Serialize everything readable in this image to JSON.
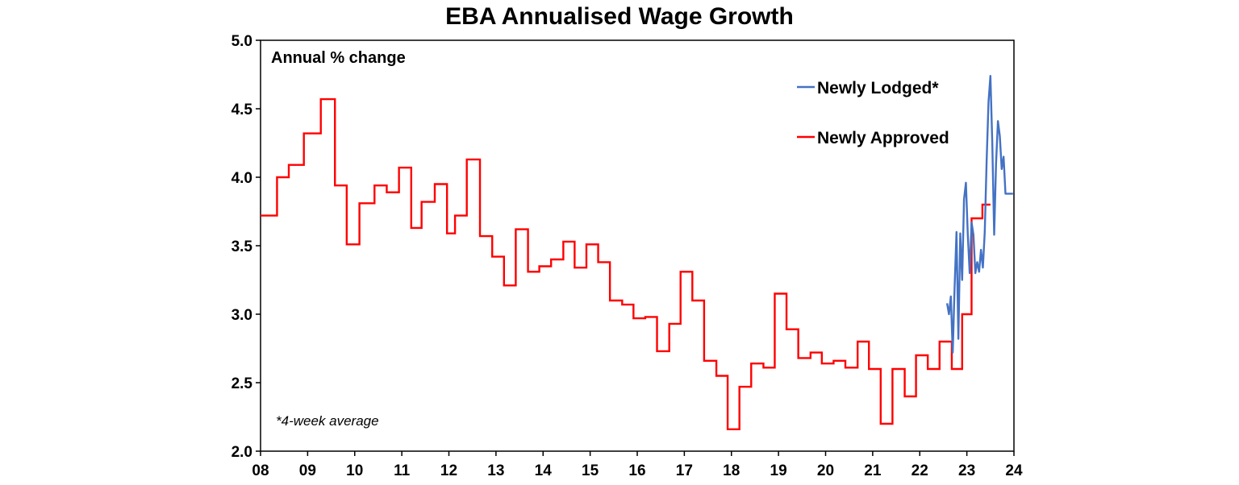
{
  "chart_data": {
    "type": "line",
    "title": "EBA Annualised Wage Growth",
    "ylabel": "Annual % change",
    "note": "*4-week average",
    "ylim": [
      2.0,
      5.0
    ],
    "yticks": [
      "2.0",
      "2.5",
      "3.0",
      "3.5",
      "4.0",
      "4.5",
      "5.0"
    ],
    "xlim": [
      2008.0,
      2024.0
    ],
    "xticks": [
      "08",
      "09",
      "10",
      "11",
      "12",
      "13",
      "14",
      "15",
      "16",
      "17",
      "18",
      "19",
      "20",
      "21",
      "22",
      "23",
      "24"
    ],
    "legend_position": "top-right",
    "series": [
      {
        "name": "Newly Lodged*",
        "color": "#4472c4",
        "x": [
          2022.58,
          2022.62,
          2022.66,
          2022.7,
          2022.74,
          2022.78,
          2022.82,
          2022.86,
          2022.9,
          2022.94,
          2022.98,
          2023.02,
          2023.06,
          2023.1,
          2023.14,
          2023.18,
          2023.22,
          2023.26,
          2023.3,
          2023.34,
          2023.38,
          2023.42,
          2023.46,
          2023.5,
          2023.54,
          2023.58,
          2023.62,
          2023.66,
          2023.7,
          2023.74,
          2023.78,
          2023.82,
          2023.86,
          2023.9,
          2023.94,
          2023.98
        ],
        "values": [
          3.08,
          3.0,
          3.13,
          2.72,
          3.2,
          3.6,
          2.82,
          3.59,
          3.25,
          3.84,
          3.96,
          3.58,
          3.3,
          3.67,
          3.58,
          3.3,
          3.38,
          3.31,
          3.47,
          3.34,
          3.6,
          4.12,
          4.55,
          4.74,
          4.25,
          3.58,
          4.1,
          4.41,
          4.3,
          4.06,
          4.15,
          3.88,
          3.88,
          3.88,
          3.88,
          3.88
        ]
      },
      {
        "name": "Newly Approved",
        "color": "#ff0000",
        "x": [
          2008.0,
          2008.35,
          2008.6,
          2008.92,
          2009.28,
          2009.58,
          2009.83,
          2010.1,
          2010.42,
          2010.68,
          2010.94,
          2011.2,
          2011.42,
          2011.7,
          2011.96,
          2012.13,
          2012.38,
          2012.66,
          2012.92,
          2013.17,
          2013.42,
          2013.68,
          2013.92,
          2014.17,
          2014.43,
          2014.67,
          2014.92,
          2015.17,
          2015.42,
          2015.68,
          2015.92,
          2016.17,
          2016.42,
          2016.68,
          2016.92,
          2017.17,
          2017.42,
          2017.68,
          2017.92,
          2018.17,
          2018.42,
          2018.68,
          2018.92,
          2019.17,
          2019.42,
          2019.68,
          2019.92,
          2020.17,
          2020.42,
          2020.68,
          2020.92,
          2021.17,
          2021.42,
          2021.68,
          2021.92,
          2022.17,
          2022.42,
          2022.68,
          2022.9,
          2023.1,
          2023.33
        ],
        "values": [
          3.72,
          4.0,
          4.09,
          4.32,
          4.57,
          3.94,
          3.51,
          3.81,
          3.94,
          3.89,
          4.07,
          3.63,
          3.82,
          3.95,
          3.59,
          3.72,
          4.13,
          3.57,
          3.42,
          3.21,
          3.62,
          3.31,
          3.35,
          3.4,
          3.53,
          3.34,
          3.51,
          3.38,
          3.1,
          3.07,
          2.97,
          2.98,
          2.73,
          2.93,
          3.31,
          3.1,
          2.66,
          2.55,
          2.16,
          2.47,
          2.64,
          2.61,
          3.15,
          2.89,
          2.68,
          2.72,
          2.64,
          2.66,
          2.61,
          2.8,
          2.6,
          2.2,
          2.6,
          2.4,
          2.7,
          2.6,
          2.8,
          2.6,
          3.0,
          3.7,
          3.8
        ],
        "end_x": 2023.5
      }
    ]
  }
}
